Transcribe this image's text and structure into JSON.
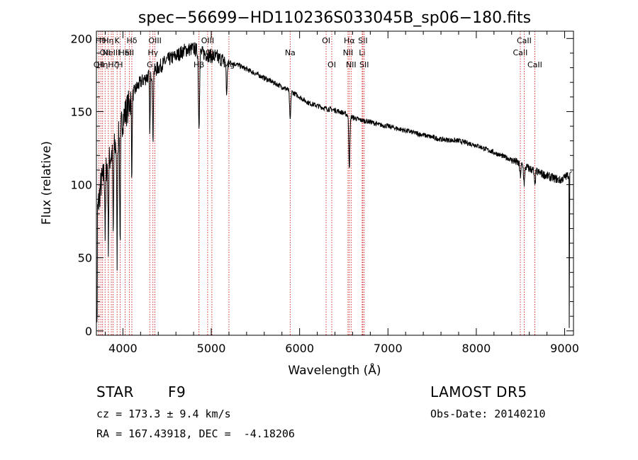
{
  "chart_data": {
    "type": "line",
    "title": "spec−56699−HD110236S033045B_sp06−180.fits",
    "xlabel": "Wavelength (Å)",
    "ylabel": "Flux (relative)",
    "xlim": [
      3700,
      9100
    ],
    "ylim": [
      -3,
      205
    ],
    "xticks": [
      4000,
      5000,
      6000,
      7000,
      8000,
      9000
    ],
    "yticks": [
      0,
      50,
      100,
      150,
      200
    ],
    "grid": false,
    "continuum": [
      [
        3700,
        75
      ],
      [
        3750,
        100
      ],
      [
        3800,
        110
      ],
      [
        3850,
        118
      ],
      [
        3900,
        125
      ],
      [
        3950,
        132
      ],
      [
        4000,
        145
      ],
      [
        4050,
        152
      ],
      [
        4100,
        160
      ],
      [
        4150,
        166
      ],
      [
        4200,
        170
      ],
      [
        4300,
        175
      ],
      [
        4400,
        180
      ],
      [
        4500,
        185
      ],
      [
        4600,
        188
      ],
      [
        4700,
        192
      ],
      [
        4800,
        193
      ],
      [
        4900,
        190
      ],
      [
        5000,
        188
      ],
      [
        5100,
        186
      ],
      [
        5200,
        184
      ],
      [
        5300,
        182
      ],
      [
        5400,
        179
      ],
      [
        5500,
        176
      ],
      [
        5600,
        173
      ],
      [
        5700,
        170
      ],
      [
        5800,
        167
      ],
      [
        5900,
        164
      ],
      [
        6000,
        160
      ],
      [
        6100,
        156
      ],
      [
        6200,
        154
      ],
      [
        6300,
        152
      ],
      [
        6400,
        151
      ],
      [
        6500,
        149
      ],
      [
        6600,
        146
      ],
      [
        6700,
        144
      ],
      [
        6800,
        143
      ],
      [
        6900,
        141
      ],
      [
        7000,
        140
      ],
      [
        7200,
        137
      ],
      [
        7400,
        134
      ],
      [
        7600,
        131
      ],
      [
        7800,
        130
      ],
      [
        8000,
        127
      ],
      [
        8200,
        122
      ],
      [
        8400,
        117
      ],
      [
        8600,
        111
      ],
      [
        8800,
        106
      ],
      [
        8950,
        103
      ],
      [
        9100,
        109
      ]
    ],
    "absorption_features": [
      {
        "wavelength": 3800,
        "depth": 45
      },
      {
        "wavelength": 3835,
        "depth": 55
      },
      {
        "wavelength": 3890,
        "depth": 60
      },
      {
        "wavelength": 3934,
        "depth": 80
      },
      {
        "wavelength": 3968,
        "depth": 75
      },
      {
        "wavelength": 4101,
        "depth": 50
      },
      {
        "wavelength": 4305,
        "depth": 40
      },
      {
        "wavelength": 4340,
        "depth": 50
      },
      {
        "wavelength": 4861,
        "depth": 50
      },
      {
        "wavelength": 5175,
        "depth": 22
      },
      {
        "wavelength": 5893,
        "depth": 20
      },
      {
        "wavelength": 6563,
        "depth": 35
      },
      {
        "wavelength": 8498,
        "depth": 8
      },
      {
        "wavelength": 8542,
        "depth": 12
      },
      {
        "wavelength": 8662,
        "depth": 10
      }
    ],
    "line_markers": [
      {
        "wavelength": 3727,
        "labels": [
          "OII"
        ],
        "row": 3
      },
      {
        "wavelength": 3750,
        "labels": [
          "Hθ"
        ],
        "row": 1
      },
      {
        "wavelength": 3770,
        "labels": [
          "Hη"
        ],
        "row": 3
      },
      {
        "wavelength": 3798,
        "labels": [
          "OII"
        ],
        "row": 2
      },
      {
        "wavelength": 3835,
        "labels": [
          "Hη"
        ],
        "row": 1
      },
      {
        "wavelength": 3869,
        "labels": [
          "NeIII"
        ],
        "row": 2
      },
      {
        "wavelength": 3889,
        "labels": [
          "Hζ"
        ],
        "row": 3
      },
      {
        "wavelength": 3934,
        "labels": [
          "K"
        ],
        "row": 1
      },
      {
        "wavelength": 3968,
        "labels": [
          "H"
        ],
        "row": 3
      },
      {
        "wavelength": 4026,
        "labels": [
          "HeI"
        ],
        "row": 2
      },
      {
        "wavelength": 4072,
        "labels": [
          "SII"
        ],
        "row": 2
      },
      {
        "wavelength": 4101,
        "labels": [
          "Hδ"
        ],
        "row": 1
      },
      {
        "wavelength": 4304,
        "labels": [
          "G"
        ],
        "row": 3
      },
      {
        "wavelength": 4340,
        "labels": [
          "Hγ"
        ],
        "row": 2
      },
      {
        "wavelength": 4363,
        "labels": [
          "OIII"
        ],
        "row": 1
      },
      {
        "wavelength": 4861,
        "labels": [
          "Hβ"
        ],
        "row": 3
      },
      {
        "wavelength": 4959,
        "labels": [
          "OIII"
        ],
        "row": 1
      },
      {
        "wavelength": 5007,
        "labels": [
          "OIII"
        ],
        "row": 2
      },
      {
        "wavelength": 5200,
        "labels": [
          "Mg"
        ],
        "row": 3
      },
      {
        "wavelength": 5893,
        "labels": [
          "Na"
        ],
        "row": 2
      },
      {
        "wavelength": 6300,
        "labels": [
          "OI"
        ],
        "row": 1
      },
      {
        "wavelength": 6364,
        "labels": [
          "OI"
        ],
        "row": 3
      },
      {
        "wavelength": 6548,
        "labels": [
          "NII"
        ],
        "row": 2
      },
      {
        "wavelength": 6563,
        "labels": [
          "Hα"
        ],
        "row": 1
      },
      {
        "wavelength": 6583,
        "labels": [
          "NII"
        ],
        "row": 3
      },
      {
        "wavelength": 6708,
        "labels": [
          "Li"
        ],
        "row": 2
      },
      {
        "wavelength": 6716,
        "labels": [
          "SII"
        ],
        "row": 1
      },
      {
        "wavelength": 6731,
        "labels": [
          "SII"
        ],
        "row": 3
      },
      {
        "wavelength": 8498,
        "labels": [
          "CaII"
        ],
        "row": 2
      },
      {
        "wavelength": 8542,
        "labels": [
          "CaII"
        ],
        "row": 1
      },
      {
        "wavelength": 8662,
        "labels": [
          "CaII"
        ],
        "row": 3
      }
    ]
  },
  "info": {
    "object_class": "STAR",
    "subclass": "F9",
    "cz": "cz = 173.3 ± 9.4 km/s",
    "coords": "RA = 167.43918, DEC =  -4.18206",
    "survey": "LAMOST DR5",
    "obs_date": "Obs-Date: 20140210"
  },
  "colors": {
    "spectrum": "#000000",
    "marker": "#cc0000",
    "axes": "#000000"
  }
}
